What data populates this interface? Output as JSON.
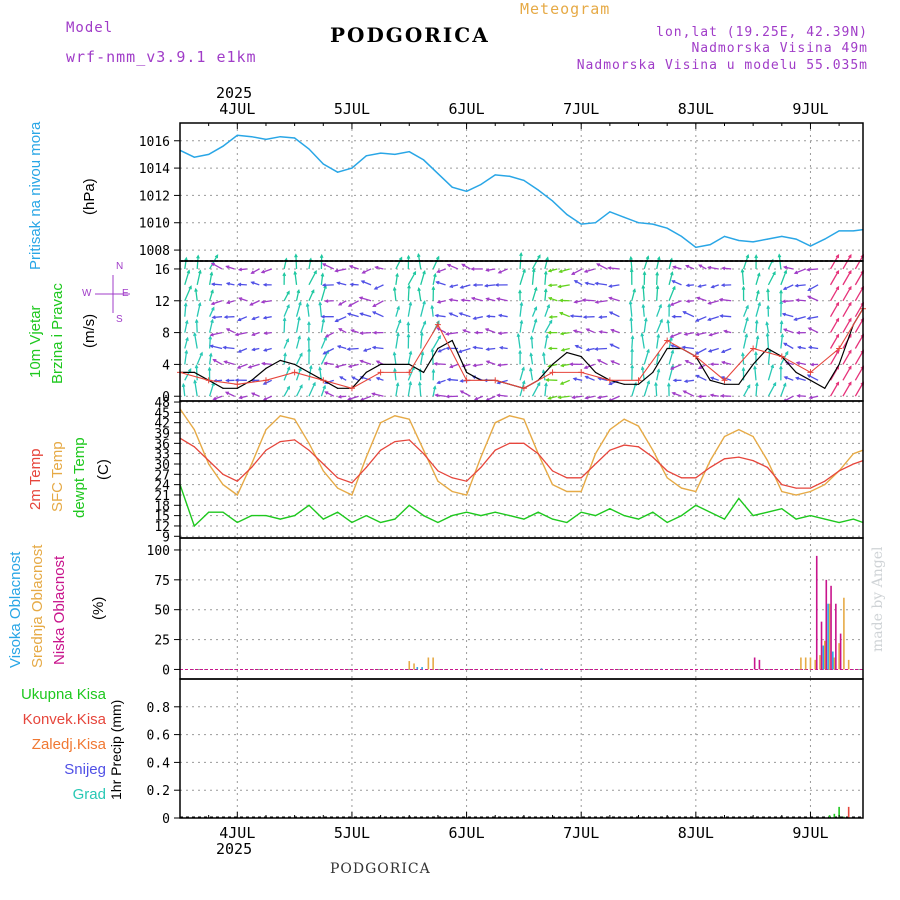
{
  "header": {
    "model_label": "Model",
    "model_name": "wrf-nmm_v3.9.1 e1km",
    "city": "PODGORICA",
    "meteogram_label": "Meteogram",
    "coords": "lon,lat (19.25E, 42.39N)",
    "altitude": "Nadmorska Visina 49m",
    "model_altitude": "Nadmorska Visina u modelu 55.035m"
  },
  "footer_city": "PODGORICA",
  "watermark": "made by Angel",
  "colors": {
    "pressure": "#29a6e6",
    "temp2m": "#e6463c",
    "sfc": "#e6aa46",
    "dewpt": "#1ec81e",
    "purple": "#a03cc8",
    "wind_speed": "#000000",
    "wind_gust": "#e6463c",
    "high_cloud": "#29a6e6",
    "mid_cloud": "#e6aa46",
    "low_cloud": "#c8148c",
    "rain_total": "#1ec81e",
    "rain_conv": "#e6463c",
    "rain_frz": "#f07832",
    "snow": "#5050e6",
    "graupel": "#28c8b4"
  },
  "time_axis": {
    "year": "2025",
    "days": [
      "4JUL",
      "5JUL",
      "6JUL",
      "7JUL",
      "8JUL",
      "9JUL"
    ],
    "start_hour": -12,
    "end_hour": 131
  },
  "panels": {
    "pressure": {
      "label": "Pritisak na nivou mora",
      "unit": "(hPa)",
      "yticks": [
        "1008",
        "1010",
        "1012",
        "1014",
        "1016"
      ]
    },
    "wind": {
      "label1": "10m Vjetar",
      "label2": "Brzina i Pravac",
      "unit": "(m/s)",
      "yticks": [
        "0",
        "4",
        "8",
        "12",
        "16"
      ],
      "compass": {
        "n": "N",
        "s": "S",
        "e": "E",
        "w": "W"
      }
    },
    "temp": {
      "label_2m": "2m Temp",
      "label_sfc": "SFC Temp",
      "label_dew": "dewpt Temp",
      "unit": "(C)",
      "yticks": [
        "9",
        "12",
        "15",
        "18",
        "21",
        "24",
        "27",
        "30",
        "33",
        "36",
        "39",
        "42",
        "45",
        "48"
      ]
    },
    "cloud": {
      "label_high": "Visoka Oblacnost",
      "label_mid": "Srednja Oblacnost",
      "label_low": "Niska Oblacnost",
      "unit": "(%)",
      "yticks": [
        "0",
        "25",
        "50",
        "75",
        "100"
      ]
    },
    "precip": {
      "legend": [
        "Ukupna Kisa",
        "Konvek.Kisa",
        "Zaledj.Kisa",
        "Snijeg",
        "Grad"
      ],
      "unit": "1hr Precip (mm)",
      "yticks": [
        "0",
        "0.2",
        "0.4",
        "0.6",
        "0.8"
      ]
    }
  },
  "chart_data": {
    "type": "line",
    "x_unit": "hours since 2025-07-04 00:00",
    "series": [
      {
        "name": "Pritisak na nivou mora",
        "unit": "hPa",
        "x": [
          -12,
          -9,
          -6,
          -3,
          0,
          3,
          6,
          9,
          12,
          15,
          18,
          21,
          24,
          27,
          30,
          33,
          36,
          39,
          42,
          45,
          48,
          51,
          54,
          57,
          60,
          63,
          66,
          69,
          72,
          75,
          78,
          81,
          84,
          87,
          90,
          93,
          96,
          99,
          102,
          105,
          108,
          111,
          114,
          117,
          120,
          123,
          126,
          129,
          131
        ],
        "y": [
          1015.3,
          1014.8,
          1015.0,
          1015.6,
          1016.4,
          1016.3,
          1016.1,
          1016.3,
          1016.2,
          1015.4,
          1014.3,
          1013.7,
          1014.0,
          1014.9,
          1015.1,
          1015.0,
          1015.2,
          1014.6,
          1013.6,
          1012.6,
          1012.3,
          1012.8,
          1013.5,
          1013.4,
          1013.1,
          1012.4,
          1011.6,
          1010.6,
          1009.9,
          1010.0,
          1010.8,
          1010.4,
          1010.0,
          1009.9,
          1009.6,
          1009.0,
          1008.2,
          1008.4,
          1009.0,
          1008.7,
          1008.6,
          1008.8,
          1009.0,
          1008.8,
          1008.3,
          1008.8,
          1009.4,
          1009.4,
          1009.5
        ]
      },
      {
        "name": "2m Temp",
        "unit": "C",
        "x": [
          -12,
          -9,
          -6,
          -3,
          0,
          3,
          6,
          9,
          12,
          15,
          18,
          21,
          24,
          27,
          30,
          33,
          36,
          39,
          42,
          45,
          48,
          51,
          54,
          57,
          60,
          63,
          66,
          69,
          72,
          75,
          78,
          81,
          84,
          87,
          90,
          93,
          96,
          99,
          102,
          105,
          108,
          111,
          114,
          117,
          120,
          123,
          126,
          129,
          131
        ],
        "y": [
          37.5,
          35,
          31,
          27,
          25,
          29,
          34,
          36.5,
          37,
          34,
          30,
          26,
          24.5,
          29,
          34,
          36.5,
          37,
          33,
          28,
          26,
          25,
          29,
          34,
          36,
          36,
          33,
          28,
          26,
          26,
          30,
          34,
          35.5,
          35,
          32,
          28,
          26,
          26,
          29,
          31.5,
          32,
          31,
          29,
          24,
          23,
          23,
          25,
          28,
          30,
          31
        ]
      },
      {
        "name": "SFC Temp",
        "unit": "C",
        "x": [
          -12,
          -9,
          -6,
          -3,
          0,
          3,
          6,
          9,
          12,
          15,
          18,
          21,
          24,
          27,
          30,
          33,
          36,
          39,
          42,
          45,
          48,
          51,
          54,
          57,
          60,
          63,
          66,
          69,
          72,
          75,
          78,
          81,
          84,
          87,
          90,
          93,
          96,
          99,
          102,
          105,
          108,
          111,
          114,
          117,
          120,
          123,
          126,
          129,
          131
        ],
        "y": [
          46,
          40,
          30,
          24,
          21,
          30,
          40,
          44,
          43,
          36,
          28,
          23,
          21,
          32,
          42,
          44,
          43,
          34,
          25,
          22,
          21,
          32,
          42,
          44,
          43,
          33,
          24,
          22,
          22,
          33,
          40,
          43,
          41,
          34,
          26,
          23,
          22,
          31,
          38,
          40,
          38,
          31,
          22,
          21,
          22,
          24,
          28,
          33,
          34
        ]
      },
      {
        "name": "dewpt Temp",
        "unit": "C",
        "x": [
          -12,
          -9,
          -6,
          -3,
          0,
          3,
          6,
          9,
          12,
          15,
          18,
          21,
          24,
          27,
          30,
          33,
          36,
          39,
          42,
          45,
          48,
          51,
          54,
          57,
          60,
          63,
          66,
          69,
          72,
          75,
          78,
          81,
          84,
          87,
          90,
          93,
          96,
          99,
          102,
          105,
          108,
          111,
          114,
          117,
          120,
          123,
          126,
          129,
          131
        ],
        "y": [
          24,
          12,
          16,
          16,
          13,
          15,
          15,
          14,
          15,
          18,
          14,
          16,
          13,
          15,
          13,
          14,
          18,
          15,
          13,
          15,
          16,
          15,
          16,
          15,
          14,
          16,
          14,
          13,
          16,
          15,
          17,
          15,
          14,
          16,
          13,
          15,
          18,
          16,
          14,
          20,
          15,
          16,
          17,
          14,
          15,
          14,
          13,
          14,
          13
        ]
      },
      {
        "name": "10m Vjetar",
        "unit": "m/s",
        "x": [
          -12,
          -9,
          -6,
          -3,
          0,
          3,
          6,
          9,
          12,
          15,
          18,
          21,
          24,
          27,
          30,
          33,
          36,
          39,
          42,
          45,
          48,
          51,
          54,
          57,
          60,
          63,
          66,
          69,
          72,
          75,
          78,
          81,
          84,
          87,
          90,
          93,
          96,
          99,
          102,
          105,
          108,
          111,
          114,
          117,
          120,
          123,
          126,
          129,
          131
        ],
        "y": [
          3,
          3,
          2,
          1,
          1,
          2,
          3.5,
          4.5,
          4,
          3,
          2,
          1,
          1,
          3,
          4,
          4,
          4,
          3,
          6,
          7,
          3,
          2,
          2,
          1.5,
          1,
          2,
          4,
          5.5,
          5,
          3,
          2,
          1.5,
          1.5,
          3,
          6,
          6,
          5,
          2,
          1.5,
          1.5,
          4,
          6,
          5,
          3,
          2,
          1,
          4,
          9,
          11
        ]
      },
      {
        "name": "10m Vjetar udar",
        "unit": "m/s",
        "x": [
          -12,
          -6,
          0,
          6,
          12,
          18,
          24,
          30,
          36,
          42,
          48,
          54,
          60,
          66,
          72,
          78,
          84,
          90,
          96,
          102,
          108,
          114,
          120,
          126,
          131
        ],
        "y": [
          3,
          2,
          1.5,
          2,
          3,
          2,
          1,
          3,
          3,
          9,
          2,
          2,
          1,
          3,
          3,
          2,
          2,
          7,
          5,
          2,
          6,
          5,
          3,
          6,
          11
        ]
      },
      {
        "name": "Niska Oblacnost",
        "unit": "%",
        "x": [
          108,
          109,
          121,
          122,
          123,
          124,
          125,
          126
        ],
        "y": [
          10,
          8,
          95,
          40,
          75,
          70,
          55,
          30
        ]
      },
      {
        "name": "Srednja Oblacnost",
        "unit": "%",
        "x": [
          36,
          37,
          40,
          41,
          118,
          119,
          120,
          121,
          122,
          123,
          124,
          125,
          126,
          127,
          128
        ],
        "y": [
          7,
          5,
          10,
          10,
          10,
          10,
          10,
          8,
          12,
          24,
          55,
          10,
          22,
          60,
          8
        ]
      },
      {
        "name": "Visoka Oblacnost",
        "unit": "%",
        "x": [
          38,
          39,
          64,
          123,
          124,
          125
        ],
        "y": [
          2,
          2,
          1,
          20,
          55,
          15
        ]
      },
      {
        "name": "Ukupna Kisa",
        "unit": "mm",
        "x": [
          124,
          125,
          126,
          127
        ],
        "y": [
          0.02,
          0.03,
          0.08,
          0.01
        ]
      },
      {
        "name": "Konvek.Kisa",
        "unit": "mm",
        "x": [
          128
        ],
        "y": [
          0.08
        ]
      }
    ]
  }
}
